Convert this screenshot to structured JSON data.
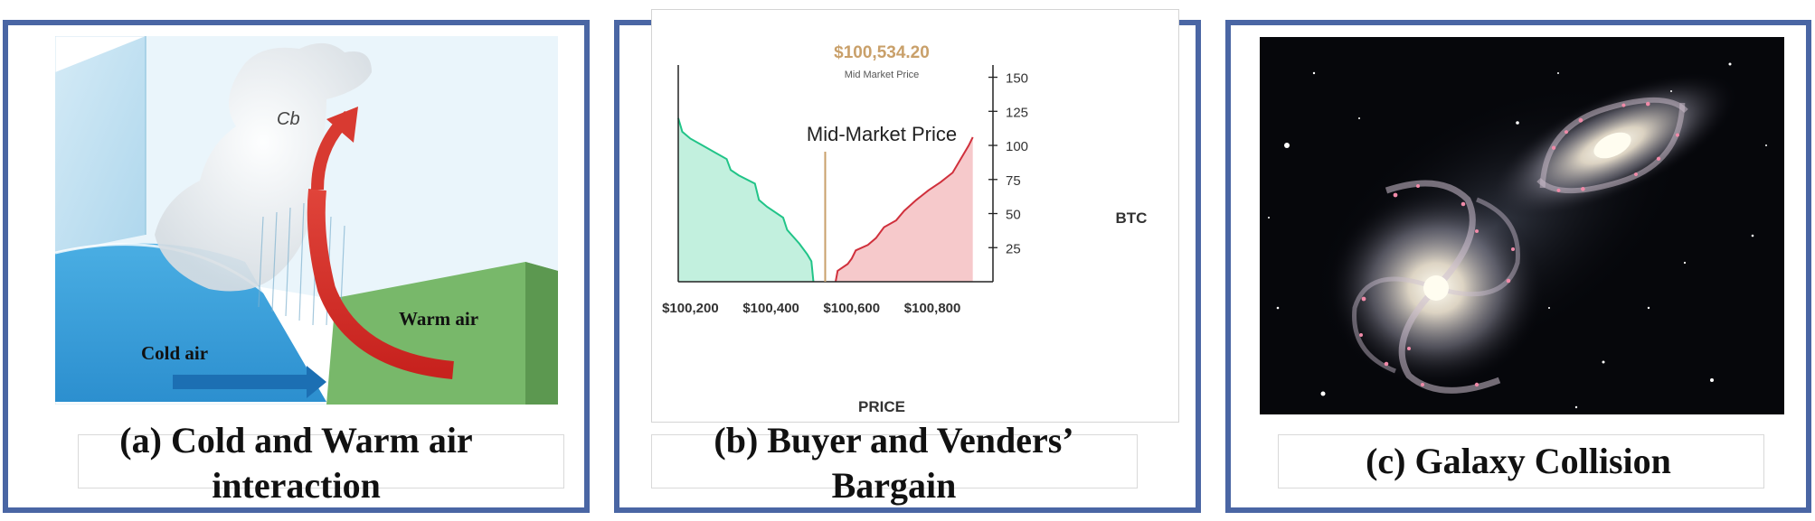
{
  "panel_a": {
    "labels": {
      "cb": "Cb",
      "warm_air": "Warm air",
      "cold_air": "Cold air"
    },
    "caption_line1": "(a) Cold and Warm air",
    "caption_line2": "interaction"
  },
  "panel_b": {
    "caption_line1": "(b) Buyer and Venders’",
    "caption_line2": "Bargain"
  },
  "panel_c": {
    "caption": "(c) Galaxy Collision"
  },
  "colors": {
    "panel_border": "#4a66a4",
    "bid_fill": "#c2f0de",
    "bid_line": "#21c488",
    "ask_fill": "#f6c9cb",
    "ask_line": "#d0303c",
    "mid_line": "#c9a06a",
    "price_text": "#c9a06a"
  },
  "chart_data": {
    "type": "area",
    "price_label": "$100,534.20",
    "price_sublabel": "Mid Market Price",
    "annotation": "Mid-Market Price",
    "xlabel": "PRICE",
    "ylabel": "BTC",
    "x_ticks": [
      "$100,200",
      "$100,400",
      "$100,600",
      "$100,800"
    ],
    "y_ticks": [
      "25",
      "50",
      "75",
      "100",
      "125",
      "150"
    ],
    "xlim": [
      100170,
      100950
    ],
    "ylim": [
      0,
      155
    ],
    "mid_price": 100534.2,
    "series": [
      {
        "side": "bid",
        "points": [
          [
            100170,
            120
          ],
          [
            100180,
            110
          ],
          [
            100200,
            105
          ],
          [
            100230,
            100
          ],
          [
            100260,
            95
          ],
          [
            100290,
            90
          ],
          [
            100300,
            82
          ],
          [
            100320,
            78
          ],
          [
            100360,
            72
          ],
          [
            100370,
            60
          ],
          [
            100390,
            55
          ],
          [
            100430,
            47
          ],
          [
            100440,
            38
          ],
          [
            100470,
            28
          ],
          [
            100490,
            20
          ],
          [
            100500,
            15
          ],
          [
            100505,
            0
          ]
        ]
      },
      {
        "side": "ask",
        "points": [
          [
            100560,
            0
          ],
          [
            100565,
            8
          ],
          [
            100590,
            13
          ],
          [
            100600,
            17
          ],
          [
            100610,
            23
          ],
          [
            100640,
            27
          ],
          [
            100660,
            32
          ],
          [
            100680,
            40
          ],
          [
            100710,
            45
          ],
          [
            100730,
            52
          ],
          [
            100760,
            60
          ],
          [
            100790,
            67
          ],
          [
            100820,
            73
          ],
          [
            100850,
            80
          ],
          [
            100870,
            90
          ],
          [
            100890,
            100
          ],
          [
            100900,
            106
          ],
          [
            100900,
            0
          ]
        ]
      }
    ]
  }
}
